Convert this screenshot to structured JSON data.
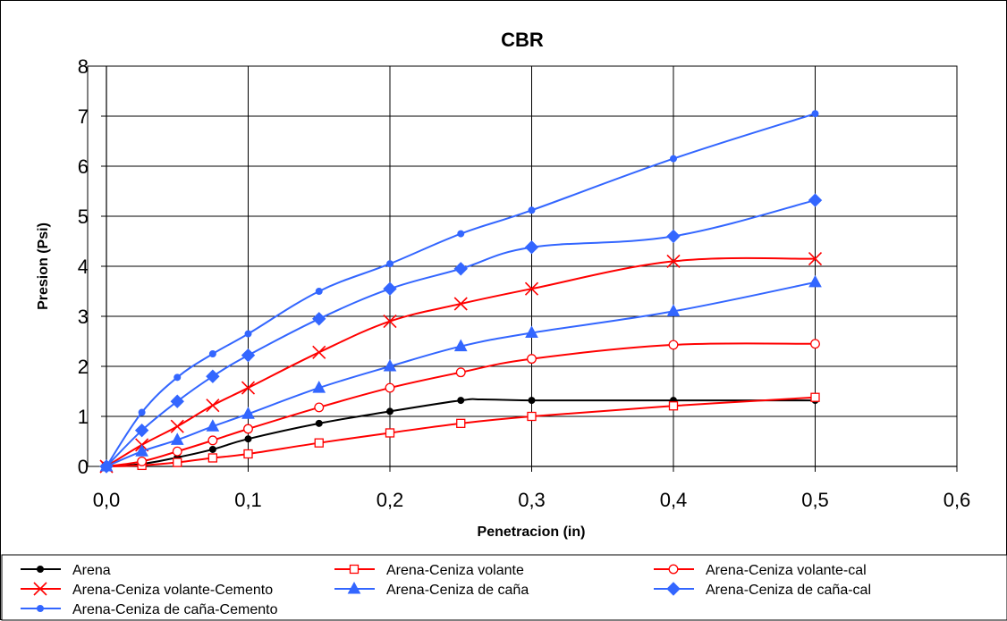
{
  "chart_data": {
    "type": "line",
    "title": "CBR",
    "xlabel": "Penetracion (in)",
    "ylabel": "Presion (Psi)",
    "xlim": [
      0,
      0.6
    ],
    "ylim": [
      0,
      8
    ],
    "x_ticks": [
      "0,0",
      "0,1",
      "0,2",
      "0,3",
      "0,4",
      "0,5",
      "0,6"
    ],
    "y_ticks": [
      "0",
      "1",
      "2",
      "3",
      "4",
      "5",
      "6",
      "7",
      "8"
    ],
    "grid": true,
    "legend_position": "bottom",
    "series": [
      {
        "name": "Arena",
        "color": "#000000",
        "marker": "dot",
        "x": [
          0,
          0.025,
          0.05,
          0.075,
          0.1,
          0.15,
          0.2,
          0.25,
          0.265,
          0.3,
          0.4,
          0.5
        ],
        "y": [
          0,
          0.05,
          0.18,
          0.34,
          0.55,
          0.86,
          1.1,
          1.32,
          1.34,
          1.32,
          1.32,
          1.32
        ]
      },
      {
        "name": "Arena-Ceniza volante",
        "color": "#ff0000",
        "marker": "square-open",
        "x": [
          0,
          0.025,
          0.05,
          0.075,
          0.1,
          0.15,
          0.2,
          0.25,
          0.3,
          0.4,
          0.5
        ],
        "y": [
          0,
          0.02,
          0.08,
          0.17,
          0.25,
          0.47,
          0.67,
          0.86,
          1.0,
          1.21,
          1.38
        ]
      },
      {
        "name": "Arena-Ceniza volante-cal",
        "color": "#ff0000",
        "marker": "circle-open",
        "x": [
          0,
          0.025,
          0.05,
          0.075,
          0.1,
          0.15,
          0.2,
          0.25,
          0.3,
          0.4,
          0.5
        ],
        "y": [
          0,
          0.1,
          0.3,
          0.52,
          0.75,
          1.18,
          1.57,
          1.88,
          2.15,
          2.43,
          2.45
        ]
      },
      {
        "name": "Arena-Ceniza volante-Cemento",
        "color": "#ff0000",
        "marker": "x",
        "x": [
          0,
          0.025,
          0.05,
          0.075,
          0.1,
          0.15,
          0.2,
          0.25,
          0.3,
          0.4,
          0.5
        ],
        "y": [
          0,
          0.43,
          0.8,
          1.22,
          1.57,
          2.28,
          2.9,
          3.25,
          3.55,
          4.1,
          4.15
        ]
      },
      {
        "name": "Arena-Ceniza de caña",
        "color": "#3366ff",
        "marker": "triangle",
        "x": [
          0,
          0.025,
          0.05,
          0.075,
          0.1,
          0.15,
          0.2,
          0.25,
          0.3,
          0.4,
          0.5
        ],
        "y": [
          0,
          0.3,
          0.53,
          0.8,
          1.05,
          1.57,
          2.0,
          2.4,
          2.67,
          3.1,
          3.68
        ]
      },
      {
        "name": "Arena-Ceniza de caña-cal",
        "color": "#3366ff",
        "marker": "diamond",
        "x": [
          0,
          0.025,
          0.05,
          0.075,
          0.1,
          0.15,
          0.2,
          0.25,
          0.3,
          0.4,
          0.5
        ],
        "y": [
          0,
          0.72,
          1.3,
          1.8,
          2.22,
          2.95,
          3.55,
          3.95,
          4.38,
          4.6,
          5.32
        ]
      },
      {
        "name": "Arena-Ceniza de caña-Cemento",
        "color": "#3366ff",
        "marker": "dot",
        "x": [
          0,
          0.025,
          0.05,
          0.075,
          0.1,
          0.15,
          0.2,
          0.25,
          0.3,
          0.4,
          0.5
        ],
        "y": [
          0,
          1.08,
          1.78,
          2.25,
          2.65,
          3.5,
          4.05,
          4.65,
          5.12,
          6.15,
          7.05
        ]
      }
    ]
  }
}
